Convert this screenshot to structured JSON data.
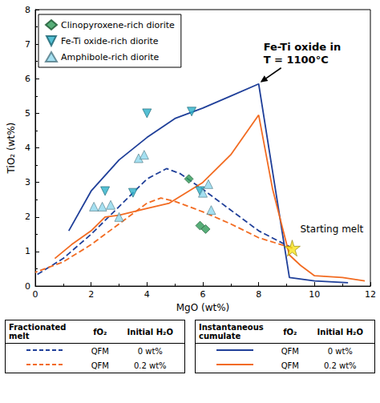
{
  "chart_data": {
    "type": "line",
    "xlabel": "MgO (wt%)",
    "ylabel": "TiO₂ (wt%)",
    "xlim": [
      0,
      12
    ],
    "xticks": [
      0,
      2,
      4,
      6,
      8,
      10,
      12
    ],
    "ylim": [
      0,
      8
    ],
    "yticks": [
      0,
      1,
      2,
      3,
      4,
      5,
      6,
      7,
      8
    ],
    "grid": false,
    "legend": "upper left",
    "table_columns": [
      "fO₂",
      "Initial H₂O"
    ],
    "series": [
      {
        "name": "Clinopyroxene-rich diorite",
        "type": "scatter",
        "marker": "diamond",
        "color": "#2e9a58",
        "x": [
          5.5,
          5.9,
          6.1
        ],
        "values": [
          3.1,
          1.75,
          1.65
        ]
      },
      {
        "name": "Fe-Ti oxide-rich diorite",
        "type": "scatter",
        "marker": "triangle-down",
        "color": "#2bb0c9",
        "x": [
          4.0,
          5.6,
          2.5,
          3.5,
          5.9
        ],
        "values": [
          5.0,
          5.05,
          2.75,
          2.7,
          2.75
        ]
      },
      {
        "name": "Amphibole-rich diorite",
        "type": "scatter",
        "marker": "triangle",
        "color": "#8fd8ee",
        "x": [
          2.1,
          2.4,
          2.7,
          3.0,
          3.7,
          3.9,
          6.0,
          6.2,
          6.3
        ],
        "values": [
          2.3,
          2.3,
          2.35,
          2.0,
          3.7,
          3.8,
          2.7,
          2.95,
          2.2
        ]
      },
      {
        "name": "Fractionated melt",
        "fO2": "QFM",
        "initial_h2o": "0 wt%",
        "type": "line",
        "line_style": "dashed",
        "color": "#1f3f99",
        "x": [
          9.2,
          8,
          7,
          6,
          5.2,
          4.7,
          4,
          3,
          2,
          1,
          0
        ],
        "values": [
          1.1,
          1.6,
          2.2,
          2.8,
          3.25,
          3.4,
          3.1,
          2.3,
          1.5,
          0.8,
          0.3
        ]
      },
      {
        "name": "Fractionated melt",
        "fO2": "QFM",
        "initial_h2o": "0.2 wt%",
        "type": "line",
        "line_style": "dashed",
        "color": "#f26b21",
        "x": [
          9.2,
          8,
          7,
          6,
          5,
          4.5,
          4,
          3,
          2,
          1,
          0
        ],
        "values": [
          1.1,
          1.4,
          1.8,
          2.15,
          2.45,
          2.55,
          2.4,
          1.8,
          1.2,
          0.7,
          0.4
        ]
      },
      {
        "name": "Instantaneous cumulate",
        "fO2": "QFM",
        "initial_h2o": "0 wt%",
        "type": "line",
        "line_style": "solid",
        "color": "#1f3f99",
        "x": [
          11.2,
          10,
          9.1,
          8,
          7,
          6,
          5,
          4,
          3,
          2,
          1.2
        ],
        "values": [
          0.1,
          0.15,
          0.25,
          5.85,
          5.5,
          5.15,
          4.85,
          4.3,
          3.65,
          2.75,
          1.6
        ]
      },
      {
        "name": "Instantaneous cumulate",
        "fO2": "QFM",
        "initial_h2o": "0.2 wt%",
        "type": "line",
        "line_style": "solid",
        "color": "#f26b21",
        "x": [
          11.8,
          11,
          10,
          9.5,
          9.1,
          8.5,
          8,
          7,
          6,
          4.8,
          4,
          3,
          2.5,
          2,
          1.3,
          0.7
        ],
        "values": [
          0.15,
          0.25,
          0.3,
          0.6,
          0.9,
          2.8,
          4.95,
          3.8,
          3.0,
          2.4,
          2.25,
          2.05,
          2.0,
          1.6,
          1.2,
          0.8
        ]
      }
    ],
    "annotations": [
      {
        "text": "Fe-Ti oxide in\nT = 1100°C",
        "x": 8,
        "y": 5.85,
        "arrow": true
      },
      {
        "text": "Starting melt",
        "x": 9.2,
        "y": 1.1,
        "marker": "star",
        "color": "#f7e21a"
      }
    ]
  }
}
